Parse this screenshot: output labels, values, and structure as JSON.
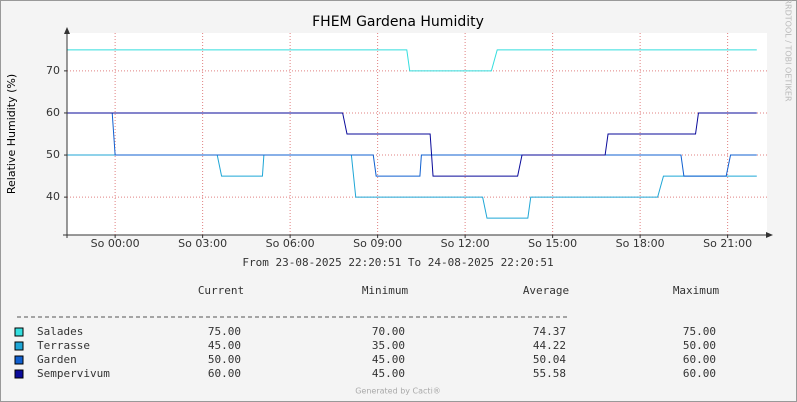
{
  "chart_data": {
    "type": "line",
    "title": "FHEM Gardena Humidity",
    "subtitle": "From 23-08-2025 22:20:51 To 24-08-2025 22:20:51",
    "y_label": "Relative Humidity (%)",
    "side_label": "RRDTOOL / TOBI OETIKER",
    "footer": "Generated by Cacti®",
    "xlim": [
      -1.65,
      22.35
    ],
    "xticks": [
      {
        "value": 0,
        "label": "So 00:00"
      },
      {
        "value": 3,
        "label": "So 03:00"
      },
      {
        "value": 6,
        "label": "So 06:00"
      },
      {
        "value": 9,
        "label": "So 09:00"
      },
      {
        "value": 12,
        "label": "So 12:00"
      },
      {
        "value": 15,
        "label": "So 15:00"
      },
      {
        "value": 18,
        "label": "So 18:00"
      },
      {
        "value": 21,
        "label": "So 21:00"
      }
    ],
    "ylim": [
      31,
      79
    ],
    "yticks": [
      40,
      50,
      60,
      70
    ],
    "grid": true,
    "series": [
      {
        "name": "Salades",
        "color": "#33dede",
        "x": [
          -1.65,
          10.0,
          10.1,
          12.9,
          13.1,
          22.0
        ],
        "values": [
          75,
          75,
          70,
          70,
          75,
          75
        ]
      },
      {
        "name": "Terrasse",
        "color": "#1fa6d6",
        "x": [
          -1.65,
          3.5,
          3.65,
          5.05,
          5.1,
          8.1,
          8.25,
          12.6,
          12.75,
          14.15,
          14.25,
          18.6,
          18.8,
          22.0
        ],
        "values": [
          50,
          50,
          45,
          45,
          50,
          50,
          40,
          40,
          35,
          35,
          40,
          40,
          45,
          45
        ]
      },
      {
        "name": "Garden",
        "color": "#1060d0",
        "x": [
          -1.65,
          -0.1,
          0.0,
          8.85,
          8.95,
          10.45,
          10.5,
          19.4,
          19.5,
          20.95,
          21.1,
          22.0
        ],
        "values": [
          60,
          60,
          50,
          50,
          45,
          45,
          50,
          50,
          45,
          45,
          50,
          50
        ]
      },
      {
        "name": "Sempervivum",
        "color": "#0a0a9a",
        "x": [
          -1.65,
          7.8,
          7.95,
          10.8,
          10.9,
          13.8,
          13.95,
          16.8,
          16.9,
          19.9,
          20.0,
          22.0
        ],
        "values": [
          60,
          60,
          55,
          55,
          45,
          45,
          50,
          50,
          55,
          55,
          60,
          60
        ]
      }
    ],
    "legend_columns": [
      "Current",
      "Minimum",
      "Average",
      "Maximum"
    ],
    "legend_stats": [
      [
        "75.00",
        "70.00",
        "74.37",
        "75.00"
      ],
      [
        "45.00",
        "35.00",
        "44.22",
        "50.00"
      ],
      [
        "50.00",
        "45.00",
        "50.04",
        "60.00"
      ],
      [
        "60.00",
        "45.00",
        "55.58",
        "60.00"
      ]
    ]
  }
}
